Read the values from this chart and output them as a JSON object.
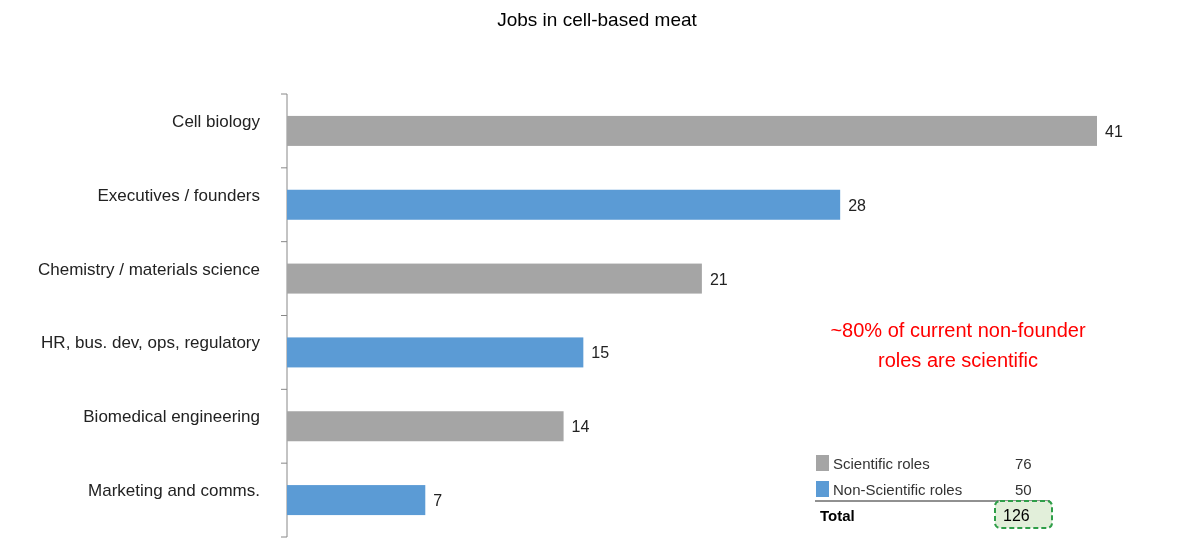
{
  "chart_data": {
    "type": "bar",
    "orientation": "horizontal",
    "stacked": true,
    "title": "Jobs in cell-based meat",
    "categories": [
      "Cell biology",
      "Executives / founders",
      "Chemistry / materials science",
      "HR, bus. dev, ops, regulatory",
      "Biomedical engineering",
      "Marketing and comms."
    ],
    "series": [
      {
        "name": "Scientific roles",
        "color": "#a5a5a5",
        "values": [
          41,
          null,
          21,
          null,
          14,
          null
        ]
      },
      {
        "name": "Non-Scientific roles",
        "color": "#5b9bd5",
        "values": [
          null,
          28,
          null,
          15,
          null,
          7
        ]
      }
    ],
    "data_labels": true,
    "legend": "bottom right",
    "annotations": [
      "~80% of current non-founder roles are scientific",
      "76",
      "50",
      "Total",
      "126"
    ]
  }
}
